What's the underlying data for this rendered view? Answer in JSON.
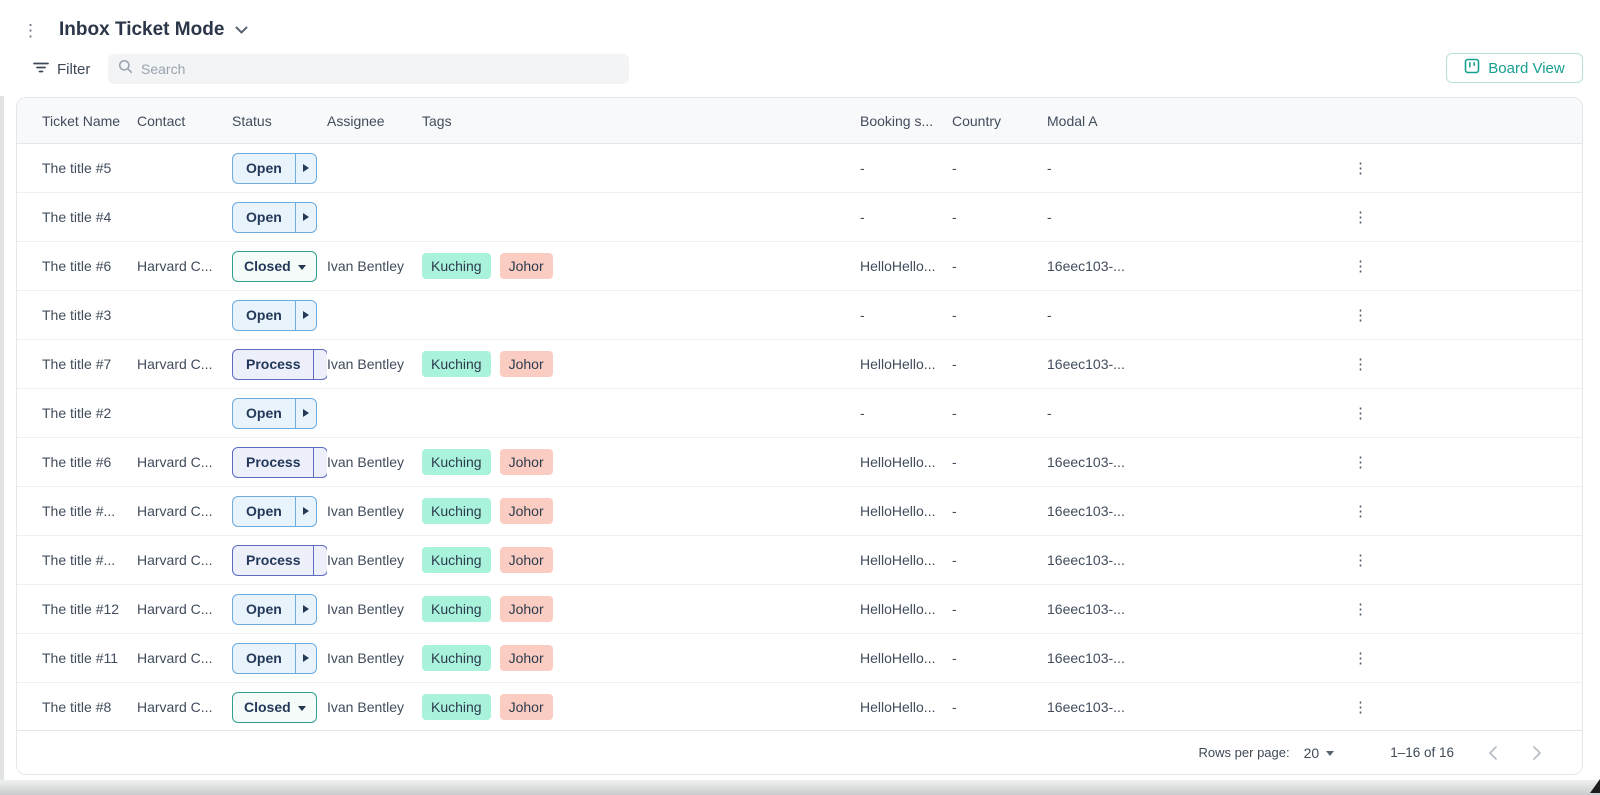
{
  "header": {
    "title": "Inbox Ticket Mode"
  },
  "toolbar": {
    "filter_label": "Filter",
    "search_placeholder": "Search",
    "board_view_label": "Board View"
  },
  "table": {
    "columns": [
      "Ticket Name",
      "Contact",
      "Status",
      "Assignee",
      "Tags",
      "Booking s...",
      "Country",
      "Modal A"
    ],
    "rows": [
      {
        "ticket": "The title #5",
        "contact": "",
        "status": "Open",
        "status_style": "open",
        "assignee": "",
        "tags": [],
        "booking": "-",
        "country": "-",
        "modal": "-"
      },
      {
        "ticket": "The title #4",
        "contact": "",
        "status": "Open",
        "status_style": "open",
        "assignee": "",
        "tags": [],
        "booking": "-",
        "country": "-",
        "modal": "-"
      },
      {
        "ticket": "The title #6",
        "contact": "Harvard C...",
        "status": "Closed",
        "status_style": "closed",
        "assignee": "Ivan Bentley",
        "tags": [
          "Kuching",
          "Johor"
        ],
        "booking": "HelloHello...",
        "country": "-",
        "modal": "16eec103-..."
      },
      {
        "ticket": "The title #3",
        "contact": "",
        "status": "Open",
        "status_style": "open",
        "assignee": "",
        "tags": [],
        "booking": "-",
        "country": "-",
        "modal": "-"
      },
      {
        "ticket": "The title #7",
        "contact": "Harvard C...",
        "status": "Process",
        "status_style": "process",
        "assignee": "Ivan Bentley",
        "tags": [
          "Kuching",
          "Johor"
        ],
        "booking": "HelloHello...",
        "country": "-",
        "modal": "16eec103-..."
      },
      {
        "ticket": "The title #2",
        "contact": "",
        "status": "Open",
        "status_style": "open",
        "assignee": "",
        "tags": [],
        "booking": "-",
        "country": "-",
        "modal": "-"
      },
      {
        "ticket": "The title #6",
        "contact": "Harvard C...",
        "status": "Process",
        "status_style": "process",
        "assignee": "Ivan Bentley",
        "tags": [
          "Kuching",
          "Johor"
        ],
        "booking": "HelloHello...",
        "country": "-",
        "modal": "16eec103-..."
      },
      {
        "ticket": "The title #...",
        "contact": "Harvard C...",
        "status": "Open",
        "status_style": "open",
        "assignee": "Ivan Bentley",
        "tags": [
          "Kuching",
          "Johor"
        ],
        "booking": "HelloHello...",
        "country": "-",
        "modal": "16eec103-..."
      },
      {
        "ticket": "The title #...",
        "contact": "Harvard C...",
        "status": "Process",
        "status_style": "process",
        "assignee": "Ivan Bentley",
        "tags": [
          "Kuching",
          "Johor"
        ],
        "booking": "HelloHello...",
        "country": "-",
        "modal": "16eec103-..."
      },
      {
        "ticket": "The title #12",
        "contact": "Harvard C...",
        "status": "Open",
        "status_style": "open",
        "assignee": "Ivan Bentley",
        "tags": [
          "Kuching",
          "Johor"
        ],
        "booking": "HelloHello...",
        "country": "-",
        "modal": "16eec103-..."
      },
      {
        "ticket": "The title #11",
        "contact": "Harvard C...",
        "status": "Open",
        "status_style": "open",
        "assignee": "Ivan Bentley",
        "tags": [
          "Kuching",
          "Johor"
        ],
        "booking": "HelloHello...",
        "country": "-",
        "modal": "16eec103-..."
      },
      {
        "ticket": "The title #8",
        "contact": "Harvard C...",
        "status": "Closed",
        "status_style": "closed",
        "assignee": "Ivan Bentley",
        "tags": [
          "Kuching",
          "Johor"
        ],
        "booking": "HelloHello...",
        "country": "-",
        "modal": "16eec103-..."
      }
    ]
  },
  "tag_colors": {
    "Kuching": "#a9f2dc",
    "Johor": "#fbcdc2"
  },
  "pagination": {
    "rows_per_page_label": "Rows per page:",
    "rows_per_page_value": "20",
    "range_label": "1–16 of 16"
  },
  "colors": {
    "accent_teal": "#18a091",
    "open_border": "#6dacdf",
    "open_bg": "#e9f3fc",
    "process_border": "#5d6cc0",
    "process_bg": "#edeffa",
    "closed_border": "#2f9e8f",
    "closed_bg": "#f4fbf9"
  }
}
